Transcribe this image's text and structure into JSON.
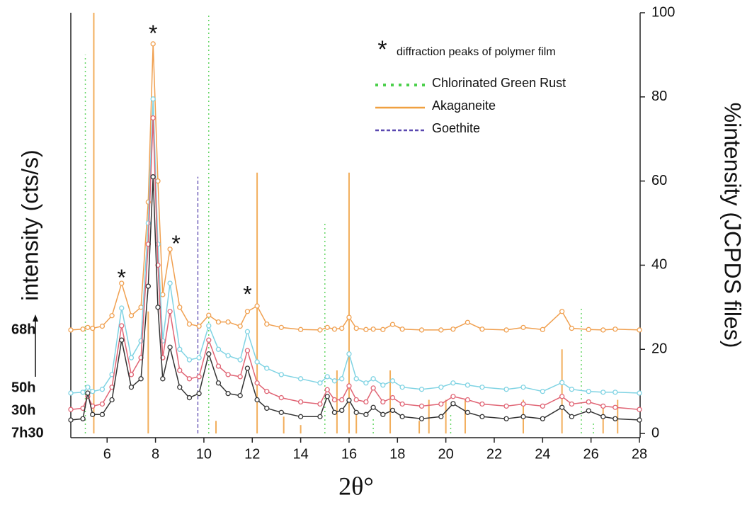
{
  "chart_data": {
    "type": "line",
    "xlabel": "2θ°",
    "ylabel": "intensity (cts/s)",
    "y2label": "%intensity (JCPDS files)",
    "xlim": [
      4.5,
      28
    ],
    "xticks": [
      6,
      8,
      10,
      12,
      14,
      16,
      18,
      20,
      22,
      24,
      26,
      28
    ],
    "ylim": [
      -1,
      100
    ],
    "y2lim": [
      -1,
      100
    ],
    "y2ticks": [
      0,
      20,
      40,
      60,
      80,
      100
    ],
    "x": [
      4.5,
      5.0,
      5.2,
      5.4,
      5.8,
      6.2,
      6.6,
      7.0,
      7.4,
      7.7,
      7.9,
      8.1,
      8.3,
      8.6,
      9.0,
      9.4,
      9.8,
      10.2,
      10.6,
      11.0,
      11.5,
      11.8,
      12.2,
      12.6,
      13.2,
      14.0,
      14.8,
      15.1,
      15.4,
      15.7,
      16.0,
      16.3,
      16.7,
      17.0,
      17.4,
      17.8,
      18.2,
      19.0,
      19.8,
      20.3,
      20.9,
      21.5,
      22.5,
      23.2,
      24.0,
      24.8,
      25.2,
      25.9,
      26.5,
      27.0,
      28.0
    ],
    "series": [
      {
        "name": "68h",
        "color": "#f0a050",
        "values": [
          24.6,
          24.8,
          25.2,
          25.0,
          25.5,
          28,
          35.7,
          28,
          30,
          55,
          92.6,
          60,
          33,
          43.8,
          30,
          26,
          25.5,
          28.1,
          26.5,
          26.5,
          25.5,
          29,
          30.3,
          26,
          25.2,
          24.7,
          24.6,
          25.2,
          24.8,
          25,
          27.6,
          25,
          24.7,
          24.8,
          24.7,
          25.9,
          24.8,
          24.6,
          24.6,
          24.8,
          26.4,
          24.8,
          24.6,
          25.2,
          24.7,
          29,
          25,
          24.7,
          24.6,
          24.8,
          24.6
        ]
      },
      {
        "name": "50h",
        "color": "#7fd3e3",
        "values": [
          9.6,
          9.8,
          11,
          10,
          10.5,
          14,
          29.8,
          18,
          22,
          50,
          79.5,
          45,
          22,
          35.7,
          20,
          17.5,
          18,
          25.6,
          20,
          18.5,
          17.5,
          24.2,
          17,
          15.5,
          14,
          13,
          12,
          13.5,
          12.5,
          13,
          18.9,
          13,
          12,
          13,
          11.5,
          12.5,
          11,
          10.5,
          11,
          12,
          11.5,
          11,
          10.5,
          11,
          10,
          12.1,
          10.5,
          10,
          9.8,
          9.8,
          9.6
        ]
      },
      {
        "name": "30h",
        "color": "#e06474",
        "values": [
          5.7,
          6,
          8.8,
          6.5,
          7,
          11,
          25.6,
          14,
          18,
          45,
          75,
          40,
          18,
          29,
          15,
          13,
          13.5,
          22.2,
          16,
          14,
          13.5,
          19.7,
          12,
          10,
          8.5,
          7.5,
          7,
          10.4,
          8,
          8,
          11.3,
          8,
          7.5,
          10.8,
          7.5,
          8.5,
          7,
          6.5,
          7,
          8.8,
          8,
          7,
          6.5,
          7,
          6.5,
          8.8,
          7,
          7.5,
          6.5,
          6.2,
          5.7
        ]
      },
      {
        "name": "7h30",
        "color": "#333333",
        "values": [
          3.2,
          3.5,
          9.6,
          4.5,
          4.5,
          8,
          22.2,
          11,
          13,
          35,
          61,
          30,
          13,
          20.5,
          11,
          8.5,
          9.5,
          18.9,
          12,
          9.5,
          9,
          15.5,
          8,
          6,
          5,
          4,
          4,
          8.8,
          5,
          5.5,
          7.9,
          5,
          4.5,
          6.2,
          4.5,
          5.5,
          4,
          3.5,
          4,
          7.1,
          5,
          4,
          3.5,
          4,
          3.5,
          6.2,
          4,
          5.4,
          4,
          3.5,
          3.2
        ]
      }
    ],
    "references": [
      {
        "name": "Chlorinated Green Rust",
        "color": "#4cd04c",
        "style": "dotted",
        "axis": "y2",
        "x": [
          5.1,
          10.2,
          15.0,
          17.0,
          20.2,
          25.6,
          26.1
        ],
        "values": [
          90,
          100,
          50,
          4,
          5,
          30,
          3
        ]
      },
      {
        "name": "Akaganeite",
        "color": "#f0a040",
        "style": "solid",
        "axis": "y2",
        "x": [
          5.45,
          7.7,
          10.5,
          12.2,
          13.3,
          14.0,
          15.5,
          16.0,
          16.3,
          17.7,
          18.9,
          19.3,
          20.0,
          20.8,
          23.2,
          24.8,
          26.5,
          27.1
        ],
        "values": [
          100,
          29,
          3,
          62,
          4,
          2,
          15,
          62,
          5,
          15,
          3,
          8,
          8,
          8,
          8,
          20,
          7,
          8
        ]
      },
      {
        "name": "Goethite",
        "color": "#5a48b0",
        "style": "dashed",
        "axis": "y2",
        "x": [
          9.75
        ],
        "values": [
          61
        ]
      }
    ],
    "annotations": [
      {
        "text": "*",
        "x": 6.6,
        "y": 38
      },
      {
        "text": "*",
        "x": 7.9,
        "y": 96
      },
      {
        "text": "*",
        "x": 8.85,
        "y": 46
      },
      {
        "text": "*",
        "x": 11.8,
        "y": 34
      }
    ],
    "legend_note": {
      "symbol": "*",
      "text": "diffraction peaks of polymer film"
    }
  }
}
